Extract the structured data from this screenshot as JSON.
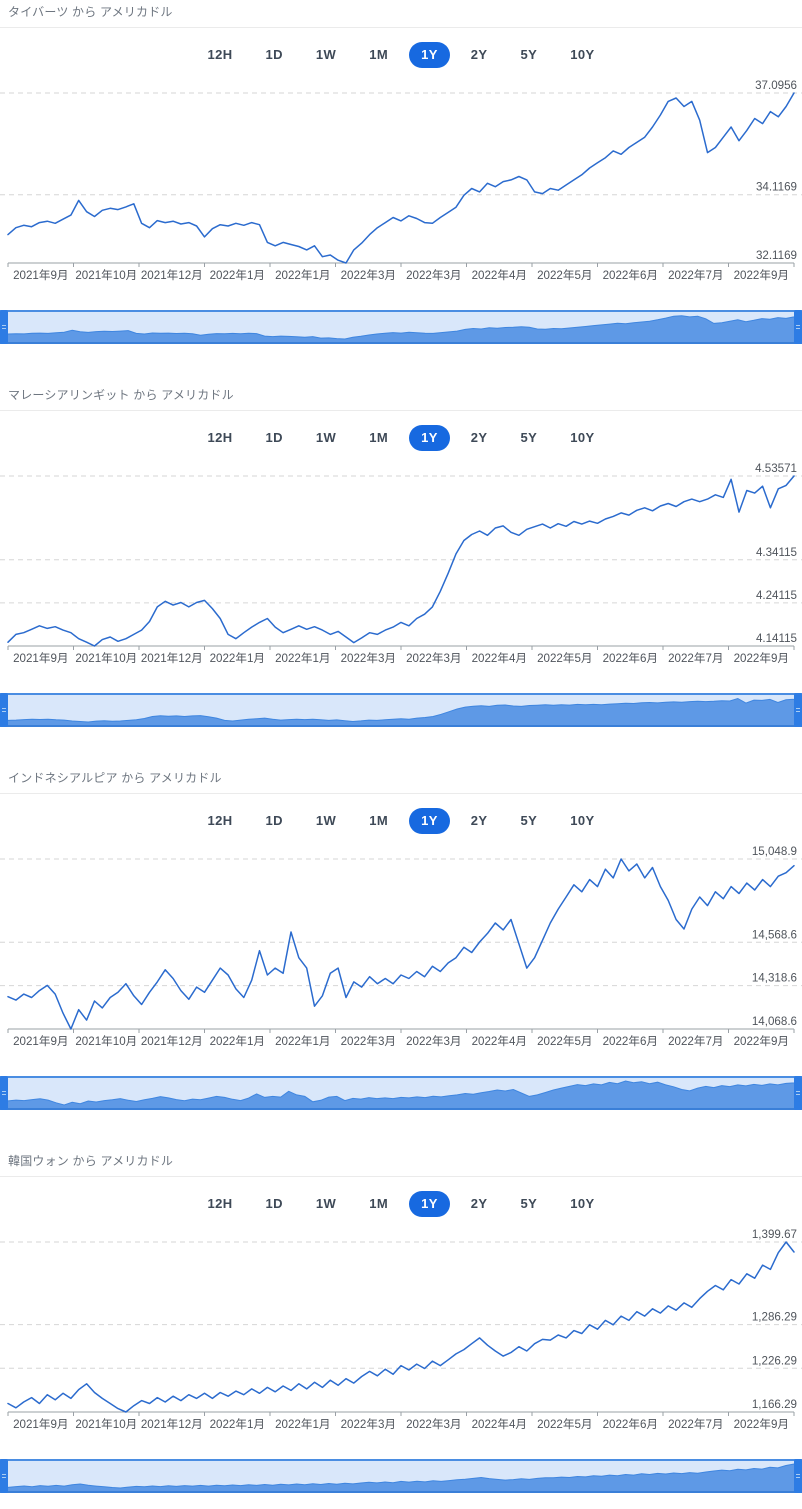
{
  "page": {
    "background": "#ffffff"
  },
  "timeframe_selector": {
    "options": [
      "12H",
      "1D",
      "1W",
      "1M",
      "1Y",
      "2Y",
      "5Y",
      "10Y"
    ],
    "selected": "1Y"
  },
  "colors": {
    "accent_blue": "#1769e0",
    "line_blue": "#2b6bce",
    "gridline": "#d6d6d6",
    "axis": "#9aa0a6",
    "axis_text": "#50555c",
    "title_text": "#6e7680",
    "divider": "#ebebeb",
    "nav_background": "#d9e7fa",
    "nav_area": "#5e99e6",
    "nav_area_line": "#3f86e0",
    "nav_handle": "#2d7ce4",
    "nav_border_top": "#4a8de2",
    "nav_border_bottom": "#3a7fd8"
  },
  "chart_data": [
    {
      "type": "line",
      "title": "タイバーツ から アメリカドル",
      "x_labels": [
        "2021年9月",
        "2021年10月",
        "2021年12月",
        "2022年1月",
        "2022年1月",
        "2022年3月",
        "2022年3月",
        "2022年4月",
        "2022年5月",
        "2022年6月",
        "2022年7月",
        "2022年9月"
      ],
      "y_ticks": [
        {
          "label": "37.0956",
          "value": 37.0956
        },
        {
          "label": "34.1169",
          "value": 34.1169
        },
        {
          "label": "32.1169",
          "value": 32.1169
        }
      ],
      "series": [
        32.95,
        33.15,
        33.22,
        33.18,
        33.3,
        33.34,
        33.28,
        33.4,
        33.52,
        33.95,
        33.62,
        33.48,
        33.66,
        33.72,
        33.68,
        33.76,
        33.85,
        33.28,
        33.15,
        33.36,
        33.3,
        33.34,
        33.26,
        33.3,
        33.2,
        32.88,
        33.12,
        33.24,
        33.2,
        33.28,
        33.22,
        33.3,
        33.24,
        32.72,
        32.62,
        32.72,
        32.66,
        32.6,
        32.5,
        32.62,
        32.3,
        32.35,
        32.2,
        32.1169,
        32.5,
        32.7,
        32.95,
        33.15,
        33.3,
        33.45,
        33.35,
        33.5,
        33.42,
        33.3,
        33.28,
        33.45,
        33.6,
        33.75,
        34.1,
        34.3,
        34.2,
        34.45,
        34.35,
        34.5,
        34.55,
        34.65,
        34.55,
        34.2,
        34.15,
        34.3,
        34.25,
        34.4,
        34.55,
        34.7,
        34.9,
        35.05,
        35.2,
        35.4,
        35.3,
        35.5,
        35.65,
        35.8,
        36.1,
        36.45,
        36.85,
        36.95,
        36.7,
        36.85,
        36.3,
        35.35,
        35.5,
        35.8,
        36.1,
        35.7,
        36.0,
        36.35,
        36.2,
        36.55,
        36.4,
        36.7,
        37.0956
      ]
    },
    {
      "type": "line",
      "title": "マレーシアリンギット から アメリカドル",
      "x_labels": [
        "2021年9月",
        "2021年10月",
        "2021年12月",
        "2022年1月",
        "2022年1月",
        "2022年3月",
        "2022年3月",
        "2022年4月",
        "2022年5月",
        "2022年6月",
        "2022年7月",
        "2022年9月"
      ],
      "y_ticks": [
        {
          "label": "4.53571",
          "value": 4.53571
        },
        {
          "label": "4.34115",
          "value": 4.34115
        },
        {
          "label": "4.24115",
          "value": 4.24115
        },
        {
          "label": "4.14115",
          "value": 4.14115
        }
      ],
      "series": [
        4.15,
        4.168,
        4.172,
        4.18,
        4.188,
        4.182,
        4.186,
        4.178,
        4.172,
        4.158,
        4.15,
        4.14115,
        4.156,
        4.162,
        4.152,
        4.158,
        4.168,
        4.178,
        4.198,
        4.232,
        4.245,
        4.236,
        4.242,
        4.232,
        4.242,
        4.247,
        4.228,
        4.205,
        4.168,
        4.158,
        4.172,
        4.185,
        4.196,
        4.205,
        4.185,
        4.172,
        4.18,
        4.188,
        4.18,
        4.186,
        4.178,
        4.168,
        4.175,
        4.162,
        4.149,
        4.16,
        4.172,
        4.168,
        4.178,
        4.185,
        4.196,
        4.188,
        4.205,
        4.215,
        4.232,
        4.268,
        4.31,
        4.355,
        4.386,
        4.4,
        4.408,
        4.398,
        4.415,
        4.42,
        4.405,
        4.398,
        4.412,
        4.418,
        4.424,
        4.415,
        4.425,
        4.419,
        4.43,
        4.424,
        4.431,
        4.426,
        4.436,
        4.442,
        4.45,
        4.445,
        4.456,
        4.462,
        4.455,
        4.466,
        4.472,
        4.465,
        4.476,
        4.482,
        4.476,
        4.482,
        4.492,
        4.486,
        4.528,
        4.452,
        4.502,
        4.496,
        4.512,
        4.462,
        4.506,
        4.514,
        4.53571
      ]
    },
    {
      "type": "line",
      "title": "インドネシアルピア から アメリカドル",
      "x_labels": [
        "2021年9月",
        "2021年10月",
        "2021年12月",
        "2022年1月",
        "2022年1月",
        "2022年3月",
        "2022年3月",
        "2022年4月",
        "2022年5月",
        "2022年6月",
        "2022年7月",
        "2022年9月"
      ],
      "y_ticks": [
        {
          "label": "15,048.9",
          "value": 15048.9
        },
        {
          "label": "14,568.6",
          "value": 14568.6
        },
        {
          "label": "14,318.6",
          "value": 14318.6
        },
        {
          "label": "14,068.6",
          "value": 14068.6
        }
      ],
      "series": [
        14255,
        14235,
        14270,
        14250,
        14290,
        14320,
        14270,
        14160,
        14068.6,
        14180,
        14120,
        14230,
        14190,
        14250,
        14280,
        14330,
        14260,
        14210,
        14280,
        14340,
        14410,
        14360,
        14290,
        14240,
        14310,
        14280,
        14350,
        14420,
        14380,
        14300,
        14250,
        14350,
        14520,
        14380,
        14420,
        14390,
        14628,
        14480,
        14420,
        14200,
        14260,
        14390,
        14420,
        14250,
        14340,
        14310,
        14370,
        14330,
        14360,
        14330,
        14380,
        14360,
        14400,
        14370,
        14430,
        14400,
        14450,
        14480,
        14540,
        14510,
        14570,
        14620,
        14680,
        14640,
        14700,
        14560,
        14420,
        14480,
        14580,
        14680,
        14760,
        14830,
        14900,
        14860,
        14930,
        14890,
        14990,
        14940,
        15048.9,
        14980,
        15020,
        14940,
        15000,
        14890,
        14810,
        14700,
        14645,
        14760,
        14830,
        14780,
        14860,
        14820,
        14890,
        14850,
        14910,
        14870,
        14930,
        14890,
        14950,
        14970,
        15010
      ]
    },
    {
      "type": "line",
      "title": "韓国ウォン から アメリカドル",
      "x_labels": [
        "2021年9月",
        "2021年10月",
        "2021年12月",
        "2022年1月",
        "2022年1月",
        "2022年3月",
        "2022年3月",
        "2022年4月",
        "2022年5月",
        "2022年6月",
        "2022年7月",
        "2022年9月"
      ],
      "y_ticks": [
        {
          "label": "1,399.67",
          "value": 1399.67
        },
        {
          "label": "1,286.29",
          "value": 1286.29
        },
        {
          "label": "1,226.29",
          "value": 1226.29
        },
        {
          "label": "1,166.29",
          "value": 1166.29
        }
      ],
      "series": [
        1178,
        1172,
        1180,
        1186,
        1178,
        1190,
        1183,
        1192,
        1185,
        1197,
        1205,
        1193,
        1185,
        1178,
        1171,
        1166.29,
        1175,
        1182,
        1178,
        1186,
        1180,
        1188,
        1182,
        1190,
        1185,
        1192,
        1185,
        1193,
        1188,
        1195,
        1190,
        1198,
        1192,
        1200,
        1194,
        1202,
        1196,
        1205,
        1198,
        1207,
        1200,
        1210,
        1203,
        1212,
        1206,
        1215,
        1222,
        1216,
        1225,
        1218,
        1230,
        1224,
        1232,
        1226,
        1236,
        1230,
        1238,
        1246,
        1252,
        1260,
        1268,
        1258,
        1250,
        1243,
        1248,
        1256,
        1250,
        1260,
        1266,
        1265,
        1272,
        1268,
        1278,
        1274,
        1286,
        1280,
        1292,
        1286,
        1298,
        1292,
        1304,
        1298,
        1308,
        1302,
        1312,
        1306,
        1316,
        1310,
        1322,
        1332,
        1340,
        1334,
        1348,
        1342,
        1356,
        1350,
        1368,
        1362,
        1385,
        1399.67,
        1386
      ]
    }
  ]
}
